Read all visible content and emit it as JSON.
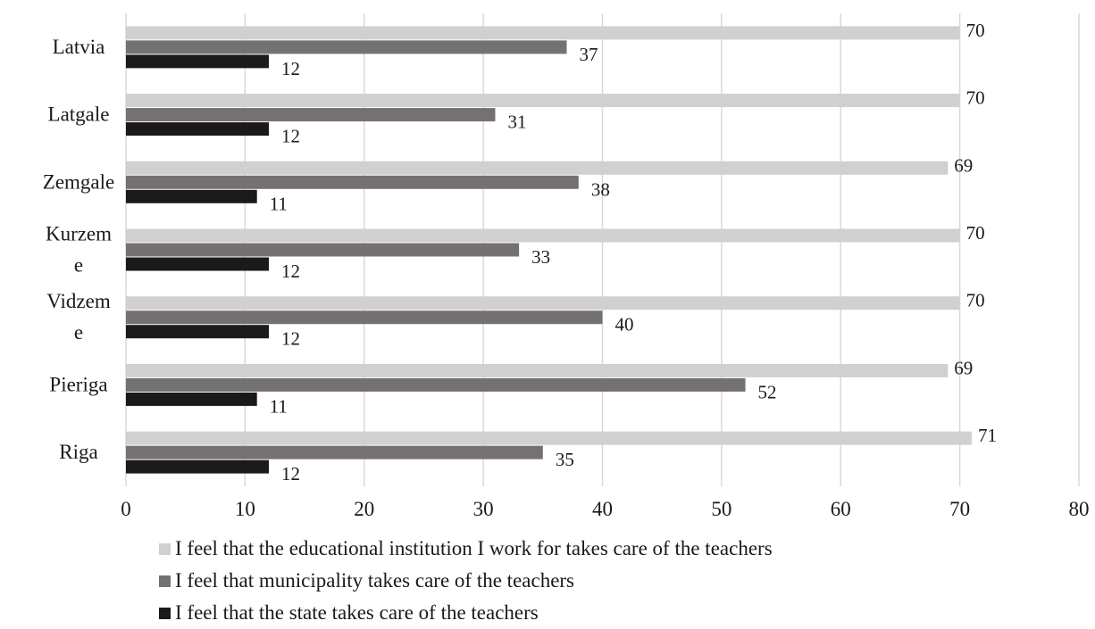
{
  "chart_data": {
    "type": "bar",
    "orientation": "horizontal",
    "categories": [
      "Latvia",
      "Latgale",
      "Zemgale",
      "Kurzeme",
      "Vidzeme",
      "Pieriga",
      "Riga"
    ],
    "category_lines": [
      [
        "Latvia"
      ],
      [
        "Latgale"
      ],
      [
        "Zemgale"
      ],
      [
        "Kurzem",
        "e"
      ],
      [
        "Vidzem",
        "e"
      ],
      [
        "Pieriga"
      ],
      [
        "Riga"
      ]
    ],
    "series": [
      {
        "name": "I feel that the educational institution I work for takes care of the teachers",
        "color": "#d0d0d0",
        "values": [
          70,
          70,
          69,
          70,
          70,
          69,
          71
        ]
      },
      {
        "name": "I feel that municipality takes care of the teachers",
        "color": "#767171",
        "values": [
          37,
          31,
          38,
          33,
          40,
          52,
          35
        ]
      },
      {
        "name": "I feel that the state takes care of the teachers",
        "color": "#1a1a1a",
        "values": [
          12,
          12,
          11,
          12,
          12,
          11,
          12
        ]
      }
    ],
    "x_ticks": [
      "0",
      "10",
      "20",
      "30",
      "40",
      "50",
      "60",
      "70",
      "80"
    ],
    "xlim": [
      0,
      80
    ],
    "grid": "vertical",
    "legend_position": "bottom",
    "title": "",
    "xlabel": "",
    "ylabel": ""
  }
}
